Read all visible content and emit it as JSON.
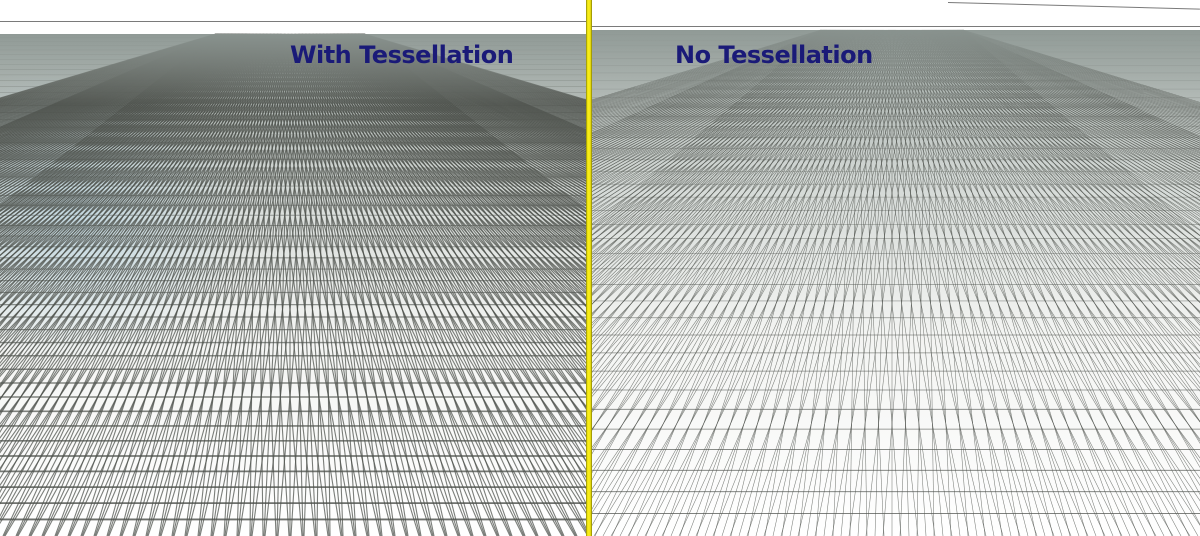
{
  "panels": {
    "left": {
      "label": "With Tessellation",
      "mesh": "dense"
    },
    "right": {
      "label": "No Tessellation",
      "mesh": "sparse"
    }
  },
  "colors": {
    "label": "#1a1a78",
    "divider": "#fff21a",
    "mesh_line": "#4f534e",
    "terrain_far": "#9aa39f",
    "terrain_tint": "#bcd6e2",
    "sky": "#ffffff"
  }
}
